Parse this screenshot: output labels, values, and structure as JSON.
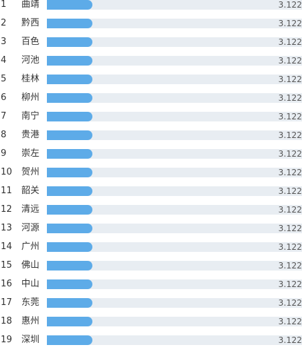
{
  "chart_data": {
    "type": "bar",
    "orientation": "horizontal",
    "categories": [
      "曲靖",
      "黔西",
      "百色",
      "河池",
      "桂林",
      "柳州",
      "南宁",
      "贵港",
      "崇左",
      "贺州",
      "韶关",
      "清远",
      "河源",
      "广州",
      "佛山",
      "中山",
      "东莞",
      "惠州",
      "深圳"
    ],
    "ranks": [
      "1",
      "2",
      "3",
      "4",
      "5",
      "6",
      "7",
      "8",
      "9",
      "10",
      "11",
      "12",
      "13",
      "14",
      "15",
      "16",
      "17",
      "18",
      "19"
    ],
    "values": [
      3.122,
      3.122,
      3.122,
      3.122,
      3.122,
      3.122,
      3.122,
      3.122,
      3.122,
      3.122,
      3.122,
      3.122,
      3.122,
      3.122,
      3.122,
      3.122,
      3.122,
      3.122,
      3.122
    ],
    "value_labels": [
      "3.122",
      "3.122",
      "3.122",
      "3.122",
      "3.122",
      "3.122",
      "3.122",
      "3.122",
      "3.122",
      "3.122",
      "3.122",
      "3.122",
      "3.122",
      "3.122",
      "3.122",
      "3.122",
      "3.122",
      "3.122",
      "3.122"
    ],
    "xlim": [
      0,
      17.6
    ],
    "title": "",
    "xlabel": "",
    "ylabel": "",
    "grid": false,
    "legend": "none",
    "colors": {
      "bar": "#5dabe8",
      "track": "#e8edf2",
      "text": "#333333"
    }
  }
}
